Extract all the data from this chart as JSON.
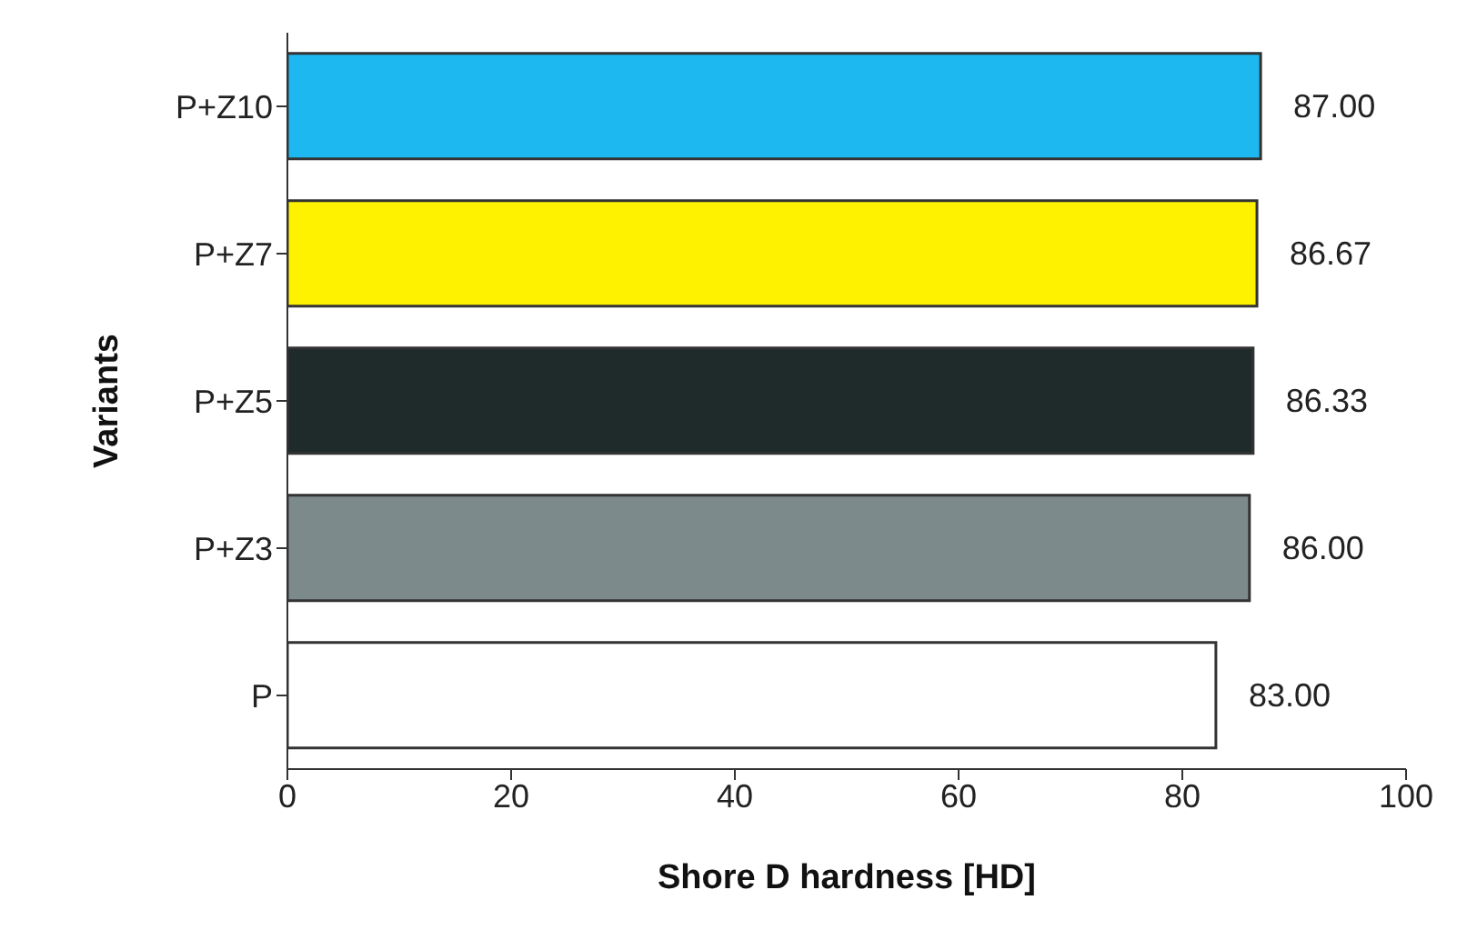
{
  "chart_data": {
    "type": "bar",
    "orientation": "horizontal",
    "xlabel": "Shore D hardness  [HD]",
    "ylabel": "Variants",
    "categories": [
      "P+Z10",
      "P+Z7",
      "P+Z5",
      "P+Z3",
      "P"
    ],
    "values": [
      87,
      86.67,
      86.33,
      86,
      83
    ],
    "colors": [
      "#1eb8f0",
      "#fff200",
      "#1f2b2b",
      "#7d8a8c",
      "#ffffff"
    ],
    "value_labels": [
      "87.00",
      "86.67",
      "86.33",
      "86.00",
      "83.00"
    ],
    "xlim": [
      0,
      100
    ],
    "xticks": [
      0,
      20,
      40,
      60,
      80,
      100
    ],
    "grid": false
  }
}
